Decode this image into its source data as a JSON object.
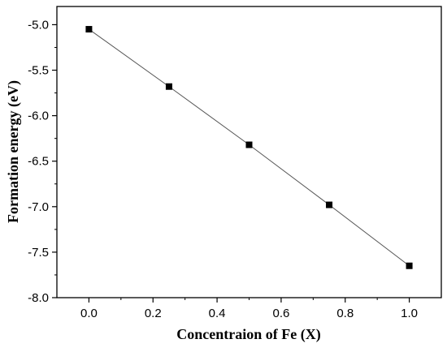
{
  "chart_data": {
    "type": "line",
    "title": "",
    "xlabel": "Concentraion of Fe (X)",
    "ylabel": "Formation energy (eV)",
    "xlim": [
      -0.1,
      1.1
    ],
    "ylim": [
      -8.0,
      -4.8
    ],
    "x_ticks": [
      "0.0",
      "0.2",
      "0.4",
      "0.6",
      "0.8",
      "1.0"
    ],
    "y_ticks": [
      "-5.0",
      "-5.5",
      "-6.0",
      "-6.5",
      "-7.0",
      "-7.5",
      "-8.0"
    ],
    "grid": false,
    "legend": "none",
    "marker": "square",
    "series": [
      {
        "x": [
          0.0,
          0.25,
          0.5,
          0.75,
          1.0
        ],
        "y": [
          -5.05,
          -5.68,
          -6.32,
          -6.98,
          -7.65
        ]
      }
    ],
    "colors": {
      "line": "#555555",
      "marker": "#000000",
      "axis": "#000000"
    }
  }
}
